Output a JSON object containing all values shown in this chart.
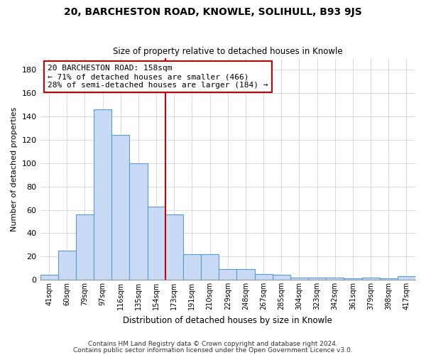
{
  "title": "20, BARCHESTON ROAD, KNOWLE, SOLIHULL, B93 9JS",
  "subtitle": "Size of property relative to detached houses in Knowle",
  "xlabel": "Distribution of detached houses by size in Knowle",
  "ylabel": "Number of detached properties",
  "bar_labels": [
    "41sqm",
    "60sqm",
    "79sqm",
    "97sqm",
    "116sqm",
    "135sqm",
    "154sqm",
    "173sqm",
    "191sqm",
    "210sqm",
    "229sqm",
    "248sqm",
    "267sqm",
    "285sqm",
    "304sqm",
    "323sqm",
    "342sqm",
    "361sqm",
    "379sqm",
    "398sqm",
    "417sqm"
  ],
  "bar_values": [
    4,
    25,
    56,
    146,
    124,
    100,
    63,
    56,
    22,
    22,
    9,
    9,
    5,
    4,
    2,
    2,
    2,
    1,
    2,
    1,
    3
  ],
  "bar_color": "#c8daf5",
  "bar_edge_color": "#5a9bd5",
  "vline_color": "#cc0000",
  "annotation_title": "20 BARCHESTON ROAD: 158sqm",
  "annotation_line1": "← 71% of detached houses are smaller (466)",
  "annotation_line2": "28% of semi-detached houses are larger (184) →",
  "annotation_box_color": "#ffffff",
  "annotation_box_edge": "#cc0000",
  "ylim": [
    0,
    190
  ],
  "yticks": [
    0,
    20,
    40,
    60,
    80,
    100,
    120,
    140,
    160,
    180
  ],
  "footer1": "Contains HM Land Registry data © Crown copyright and database right 2024.",
  "footer2": "Contains public sector information licensed under the Open Government Licence v3.0."
}
